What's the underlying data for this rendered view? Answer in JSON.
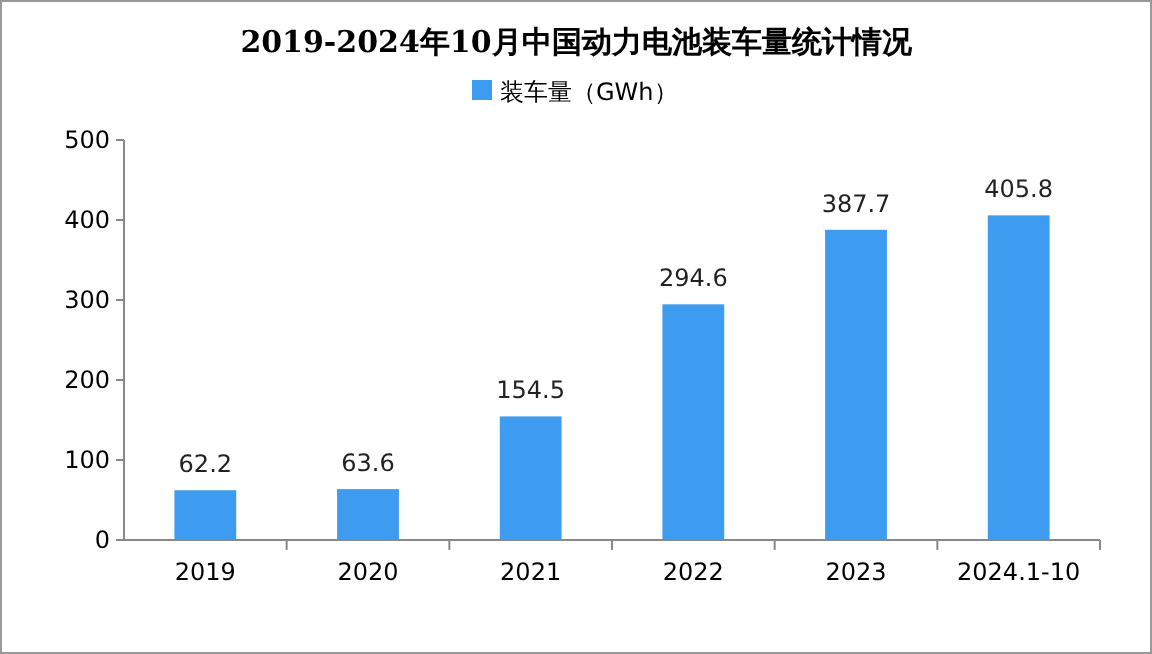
{
  "chart_data": {
    "type": "bar",
    "title": "2019-2024年10月中国动力电池装车量统计情况",
    "categories": [
      "2019",
      "2020",
      "2021",
      "2022",
      "2023",
      "2024.1-10"
    ],
    "series": [
      {
        "name": "装车量（GWh）",
        "color": "#3d9cf0",
        "values": [
          62.2,
          63.6,
          154.5,
          294.6,
          387.7,
          405.8
        ]
      }
    ],
    "ylim": [
      0,
      500
    ],
    "yticks": [
      0,
      100,
      200,
      300,
      400,
      500
    ],
    "grid": false,
    "legend": "top",
    "data_labels": true
  }
}
